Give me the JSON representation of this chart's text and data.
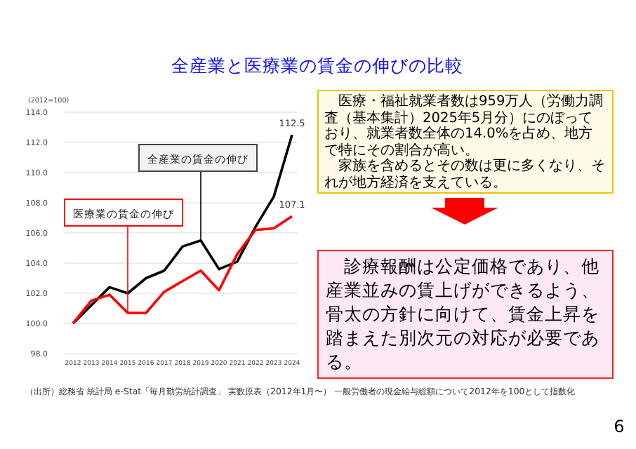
{
  "chart_data": {
    "type": "line",
    "title": "全産業と医療業の賃金の伸びの比較",
    "ylabel": "(2012=100)",
    "categories": [
      "2012",
      "2013",
      "2014",
      "2015",
      "2016",
      "2017",
      "2018",
      "2019",
      "2020",
      "2021",
      "2022",
      "2023",
      "2024"
    ],
    "series": [
      {
        "color": "#000000",
        "values": [
          100,
          101.2,
          102.4,
          102.0,
          103.0,
          103.5,
          105.1,
          105.5,
          103.6,
          104.1,
          106.4,
          108.4,
          112.5
        ],
        "value_labels": [
          null,
          null,
          null,
          null,
          null,
          null,
          null,
          null,
          null,
          null,
          null,
          null,
          "112.5"
        ]
      },
      {
        "color": "#ff0000",
        "values": [
          100,
          101.5,
          101.9,
          100.7,
          100.7,
          102.1,
          102.8,
          103.5,
          102.2,
          104.6,
          106.2,
          106.3,
          107.1
        ],
        "value_labels": [
          null,
          null,
          null,
          null,
          null,
          null,
          null,
          null,
          null,
          null,
          null,
          null,
          "107.1"
        ]
      }
    ],
    "ylim": [
      98,
      114
    ],
    "yticks": [
      {
        "value": 98,
        "label": "98.0"
      },
      {
        "value": 100,
        "label": "100.0"
      },
      {
        "value": 102,
        "label": "102.0"
      },
      {
        "value": 104,
        "label": "104.0"
      },
      {
        "value": 106,
        "label": "106.0"
      },
      {
        "value": 108,
        "label": "108.0"
      },
      {
        "value": 110,
        "label": "110.0"
      },
      {
        "value": 112,
        "label": "112.0"
      },
      {
        "value": 114,
        "label": "114.0"
      }
    ],
    "grid": "y",
    "marker": "none",
    "line_style": "solid",
    "annotations": [
      {
        "text": "全産業の賃金の伸び",
        "x": "2019",
        "y": 105.5
      },
      {
        "text": "医療業の賃金の伸び",
        "x": "2015",
        "y": 100.7
      },
      "　医療・福祉就業者数は959万人（労働力調査（基本集計）2025年5月分）にのぼっており、就業者数全体の14.0%を占め、地方で特にその割合が高い。",
      "　家族を含めるとその数は更に多くなり、それが地方経済を支えている。",
      "　診療報酬は公定価格であり、他産業並みの賃上げができるよう、骨太の方針に向けて、賃金上昇を踏まえた別次元の対応が必要である。",
      "（出所）総務省 統計局 e-Stat「毎月勤労統計調査」 実数原表（2012年1月〜） 一般労働者の現金給与総額について2012年を100として指数化",
      "6"
    ]
  }
}
